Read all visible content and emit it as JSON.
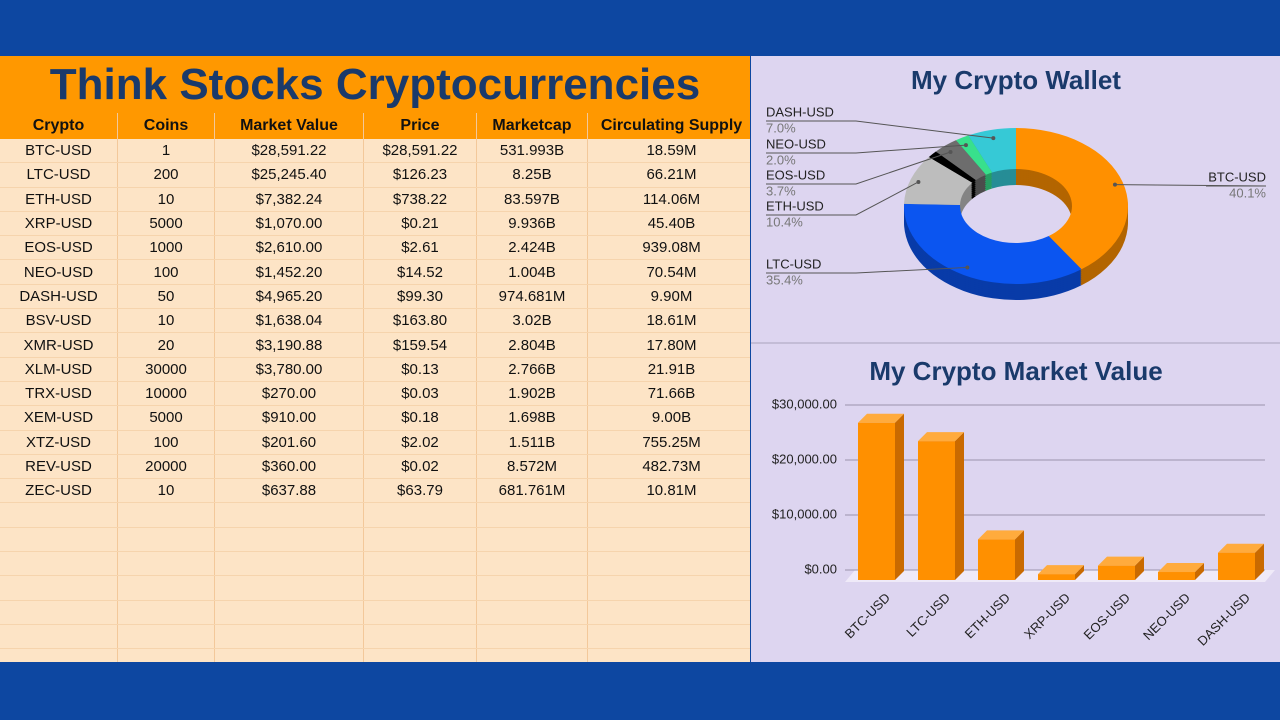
{
  "title": "Think Stocks Cryptocurrencies",
  "table": {
    "headers": [
      "Crypto",
      "Coins",
      "Market Value",
      "Price",
      "Marketcap",
      "Circulating  Supply"
    ],
    "rows": [
      [
        "BTC-USD",
        "1",
        "$28,591.22",
        "$28,591.22",
        "531.993B",
        "18.59M"
      ],
      [
        "LTC-USD",
        "200",
        "$25,245.40",
        "$126.23",
        "8.25B",
        "66.21M"
      ],
      [
        "ETH-USD",
        "10",
        "$7,382.24",
        "$738.22",
        "83.597B",
        "114.06M"
      ],
      [
        "XRP-USD",
        "5000",
        "$1,070.00",
        "$0.21",
        "9.936B",
        "45.40B"
      ],
      [
        "EOS-USD",
        "1000",
        "$2,610.00",
        "$2.61",
        "2.424B",
        "939.08M"
      ],
      [
        "NEO-USD",
        "100",
        "$1,452.20",
        "$14.52",
        "1.004B",
        "70.54M"
      ],
      [
        "DASH-USD",
        "50",
        "$4,965.20",
        "$99.30",
        "974.681M",
        "9.90M"
      ],
      [
        "BSV-USD",
        "10",
        "$1,638.04",
        "$163.80",
        "3.02B",
        "18.61M"
      ],
      [
        "XMR-USD",
        "20",
        "$3,190.88",
        "$159.54",
        "2.804B",
        "17.80M"
      ],
      [
        "XLM-USD",
        "30000",
        "$3,780.00",
        "$0.13",
        "2.766B",
        "21.91B"
      ],
      [
        "TRX-USD",
        "10000",
        "$270.00",
        "$0.03",
        "1.902B",
        "71.66B"
      ],
      [
        "XEM-USD",
        "5000",
        "$910.00",
        "$0.18",
        "1.698B",
        "9.00B"
      ],
      [
        "XTZ-USD",
        "100",
        "$201.60",
        "$2.02",
        "1.511B",
        "755.25M"
      ],
      [
        "REV-USD",
        "20000",
        "$360.00",
        "$0.02",
        "8.572M",
        "482.73M"
      ],
      [
        "ZEC-USD",
        "10",
        "$637.88",
        "$63.79",
        "681.761M",
        "10.81M"
      ]
    ]
  },
  "chart_data": [
    {
      "type": "pie",
      "title": "My Crypto Wallet",
      "categories": [
        "BTC-USD",
        "LTC-USD",
        "ETH-USD",
        null,
        "EOS-USD",
        "NEO-USD",
        "DASH-USD"
      ],
      "values": [
        40.1,
        35.4,
        10.4,
        1.5,
        3.7,
        2.0,
        7.0
      ],
      "value_labels": [
        "40.1%",
        "35.4%",
        "10.4%",
        null,
        "3.7%",
        "2.0%",
        "7.0%"
      ],
      "colors": [
        "#ff9000",
        "#0b55f0",
        "#bdbdbd",
        "#000000",
        "#6d6d6d",
        "#38e08c",
        "#36c9d6"
      ]
    },
    {
      "type": "bar",
      "title": "My Crypto Market Value",
      "categories": [
        "BTC-USD",
        "LTC-USD",
        "ETH-USD",
        "XRP-USD",
        "EOS-USD",
        "NEO-USD",
        "DASH-USD"
      ],
      "values": [
        28591.22,
        25245.4,
        7382.24,
        1070.0,
        2610.0,
        1452.2,
        4965.2
      ],
      "color": "#ff9000",
      "ylim": [
        0,
        30000
      ],
      "yticks": [
        {
          "value": 0,
          "label": "$0.00"
        },
        {
          "value": 10000,
          "label": "$10,000.00"
        },
        {
          "value": 20000,
          "label": "$20,000.00"
        },
        {
          "value": 30000,
          "label": "$30,000.00"
        }
      ],
      "grid": true
    }
  ]
}
